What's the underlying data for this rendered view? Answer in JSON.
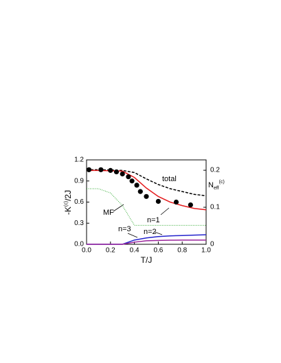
{
  "chart_data": {
    "type": "line",
    "xlabel": "T/J",
    "ylabel": [
      "-K",
      "(c)",
      "/2J"
    ],
    "y2label": [
      "N",
      "eff",
      "(c)"
    ],
    "x": [
      0,
      0.1,
      0.2,
      0.3,
      0.4,
      0.5,
      0.6,
      0.7,
      0.8,
      0.9,
      1.0
    ],
    "series": [
      {
        "name": "total",
        "color": "#000000",
        "style": "dashed",
        "values": [
          1.06,
          1.06,
          1.055,
          1.05,
          1.02,
          0.93,
          0.85,
          0.79,
          0.75,
          0.71,
          0.69
        ]
      },
      {
        "name": "n=1",
        "color": "#e41a1c",
        "style": "solid",
        "values": [
          1.05,
          1.05,
          1.045,
          1.04,
          0.95,
          0.8,
          0.68,
          0.6,
          0.55,
          0.51,
          0.49
        ]
      },
      {
        "name": "MF",
        "color": "#33aa33",
        "style": "dotted",
        "values": [
          0.79,
          0.79,
          0.73,
          0.55,
          0.27,
          0.27,
          0.27,
          0.27,
          0.27,
          0.27,
          0.27
        ]
      },
      {
        "name": "n=2",
        "color": "#2222cc",
        "style": "solid",
        "values": [
          0,
          0,
          0,
          0,
          0.06,
          0.09,
          0.11,
          0.12,
          0.125,
          0.13,
          0.135
        ]
      },
      {
        "name": "n=3",
        "color": "#992299",
        "style": "solid",
        "values": [
          0,
          0,
          0,
          0,
          0.03,
          0.05,
          0.055,
          0.058,
          0.06,
          0.06,
          0.06
        ]
      }
    ],
    "points": {
      "color": "#000000",
      "x": [
        0.02,
        0.12,
        0.2,
        0.25,
        0.3,
        0.35,
        0.38,
        0.42,
        0.45,
        0.5,
        0.6,
        0.75,
        0.87
      ],
      "values": [
        1.06,
        1.06,
        1.05,
        1.03,
        1.0,
        0.96,
        0.9,
        0.84,
        0.75,
        0.68,
        0.61,
        0.6,
        0.56
      ]
    },
    "xlim": [
      0,
      1.0
    ],
    "xticks": [
      {
        "value": 0,
        "label": "0.0"
      },
      0.2,
      0.4,
      0.6,
      0.8,
      {
        "value": 1.0,
        "label": "1.0"
      }
    ],
    "ylim": [
      0,
      1.2
    ],
    "yticks": [
      {
        "value": 0,
        "label": "0.0"
      },
      0.3,
      0.6,
      0.9,
      1.2
    ],
    "y2lim": [
      0,
      0.228
    ],
    "y2ticks": [
      0,
      0.1,
      0.2
    ]
  }
}
